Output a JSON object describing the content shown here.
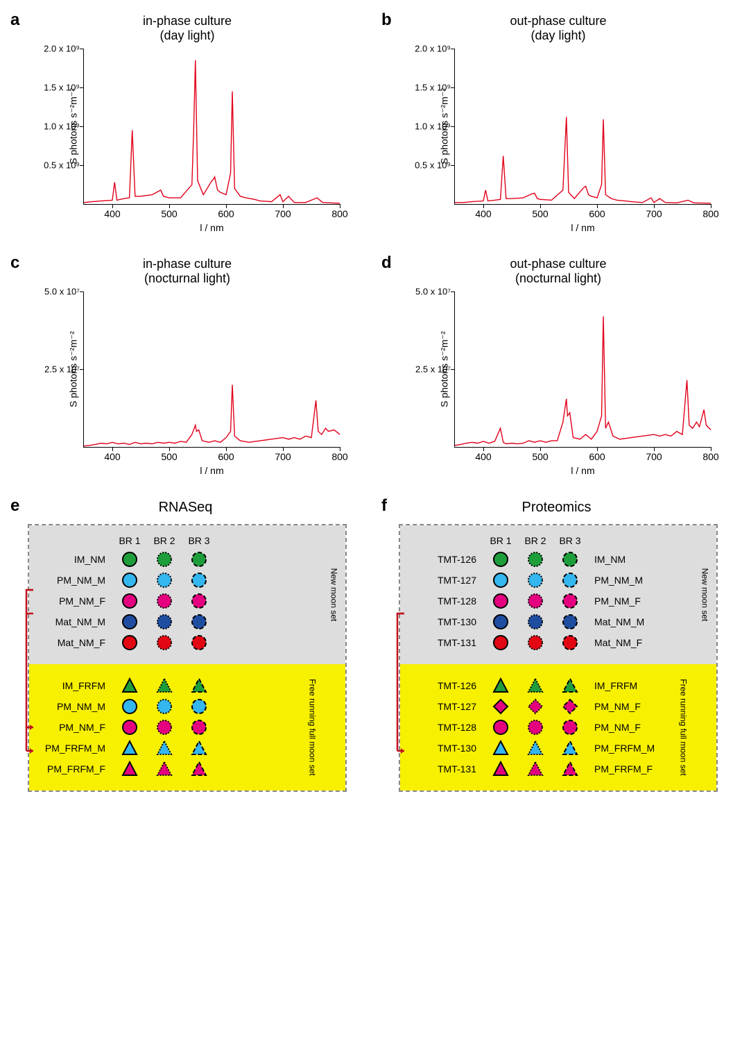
{
  "charts": {
    "a": {
      "letter": "a",
      "title": "in-phase culture\n(day light)",
      "xlabel": "l / nm",
      "ylabel": "S photons s⁻²m⁻²",
      "xlim": [
        350,
        800
      ],
      "ylim": [
        0,
        2000000000.0
      ],
      "xticks": [
        400,
        500,
        600,
        700,
        800
      ],
      "yticks": [
        {
          "v": 500000000.0,
          "label": "0.5 x 10⁹"
        },
        {
          "v": 1000000000.0,
          "label": "1.0 x 10⁹"
        },
        {
          "v": 1500000000.0,
          "label": "1.5 x 10⁹"
        },
        {
          "v": 2000000000.0,
          "label": "2.0 x 10⁹"
        }
      ],
      "line_color": "#e2001a",
      "data": [
        [
          350,
          20000000.0
        ],
        [
          365,
          30000000.0
        ],
        [
          380,
          40000000.0
        ],
        [
          400,
          50000000.0
        ],
        [
          404,
          280000000.0
        ],
        [
          408,
          50000000.0
        ],
        [
          420,
          70000000.0
        ],
        [
          430,
          80000000.0
        ],
        [
          435,
          950000000.0
        ],
        [
          440,
          100000000.0
        ],
        [
          450,
          100000000.0
        ],
        [
          470,
          120000000.0
        ],
        [
          485,
          180000000.0
        ],
        [
          490,
          100000000.0
        ],
        [
          500,
          80000000.0
        ],
        [
          520,
          80000000.0
        ],
        [
          540,
          250000000.0
        ],
        [
          543,
          950000000.0
        ],
        [
          546,
          1850000000.0
        ],
        [
          550,
          300000000.0
        ],
        [
          560,
          120000000.0
        ],
        [
          575,
          300000000.0
        ],
        [
          578,
          320000000.0
        ],
        [
          580,
          350000000.0
        ],
        [
          585,
          180000000.0
        ],
        [
          590,
          150000000.0
        ],
        [
          600,
          120000000.0
        ],
        [
          608,
          400000000.0
        ],
        [
          611,
          1450000000.0
        ],
        [
          615,
          200000000.0
        ],
        [
          625,
          100000000.0
        ],
        [
          635,
          80000000.0
        ],
        [
          650,
          60000000.0
        ],
        [
          660,
          40000000.0
        ],
        [
          680,
          30000000.0
        ],
        [
          695,
          120000000.0
        ],
        [
          700,
          30000000.0
        ],
        [
          710,
          100000000.0
        ],
        [
          720,
          20000000.0
        ],
        [
          740,
          20000000.0
        ],
        [
          760,
          80000000.0
        ],
        [
          770,
          20000000.0
        ],
        [
          800,
          10000000.0
        ]
      ]
    },
    "b": {
      "letter": "b",
      "title": "out-phase culture\n(day light)",
      "xlabel": "l / nm",
      "ylabel": "S photons s⁻²m⁻²",
      "xlim": [
        350,
        800
      ],
      "ylim": [
        0,
        2000000000.0
      ],
      "xticks": [
        400,
        500,
        600,
        700,
        800
      ],
      "yticks": [
        {
          "v": 500000000.0,
          "label": "0.5 x 10⁹"
        },
        {
          "v": 1000000000.0,
          "label": "1.0 x 10⁹"
        },
        {
          "v": 1500000000.0,
          "label": "1.5 x 10⁹"
        },
        {
          "v": 2000000000.0,
          "label": "2.0 x 10⁹"
        }
      ],
      "line_color": "#e2001a",
      "data": [
        [
          350,
          20000000.0
        ],
        [
          365,
          20000000.0
        ],
        [
          380,
          30000000.0
        ],
        [
          400,
          40000000.0
        ],
        [
          404,
          180000000.0
        ],
        [
          408,
          40000000.0
        ],
        [
          420,
          50000000.0
        ],
        [
          430,
          60000000.0
        ],
        [
          435,
          620000000.0
        ],
        [
          440,
          70000000.0
        ],
        [
          450,
          70000000.0
        ],
        [
          470,
          80000000.0
        ],
        [
          485,
          130000000.0
        ],
        [
          490,
          140000000.0
        ],
        [
          495,
          70000000.0
        ],
        [
          500,
          60000000.0
        ],
        [
          520,
          50000000.0
        ],
        [
          540,
          180000000.0
        ],
        [
          546,
          1120000000.0
        ],
        [
          550,
          150000000.0
        ],
        [
          560,
          70000000.0
        ],
        [
          575,
          200000000.0
        ],
        [
          578,
          220000000.0
        ],
        [
          580,
          230000000.0
        ],
        [
          585,
          120000000.0
        ],
        [
          590,
          100000000.0
        ],
        [
          600,
          80000000.0
        ],
        [
          608,
          250000000.0
        ],
        [
          611,
          1090000000.0
        ],
        [
          615,
          120000000.0
        ],
        [
          625,
          70000000.0
        ],
        [
          635,
          50000000.0
        ],
        [
          650,
          40000000.0
        ],
        [
          660,
          30000000.0
        ],
        [
          680,
          20000000.0
        ],
        [
          695,
          80000000.0
        ],
        [
          700,
          20000000.0
        ],
        [
          710,
          70000000.0
        ],
        [
          720,
          20000000.0
        ],
        [
          740,
          15000000.0
        ],
        [
          760,
          50000000.0
        ],
        [
          770,
          15000000.0
        ],
        [
          800,
          10000000.0
        ]
      ]
    },
    "c": {
      "letter": "c",
      "title": "in-phase culture\n(nocturnal light)",
      "xlabel": "l / nm",
      "ylabel": "S photons s⁻²m⁻²",
      "xlim": [
        350,
        800
      ],
      "ylim": [
        0,
        50000000.0
      ],
      "xticks": [
        400,
        500,
        600,
        700,
        800
      ],
      "yticks": [
        {
          "v": 25000000.0,
          "label": "2.5 x 10⁷"
        },
        {
          "v": 50000000.0,
          "label": "5.0 x 10⁷"
        }
      ],
      "line_color": "#e2001a",
      "data": [
        [
          350,
          300000.0
        ],
        [
          360,
          500000.0
        ],
        [
          370,
          800000.0
        ],
        [
          380,
          1200000.0
        ],
        [
          390,
          1000000.0
        ],
        [
          400,
          1500000.0
        ],
        [
          410,
          1000000.0
        ],
        [
          420,
          1200000.0
        ],
        [
          430,
          800000.0
        ],
        [
          440,
          1500000.0
        ],
        [
          450,
          1000000.0
        ],
        [
          460,
          1200000.0
        ],
        [
          470,
          1000000.0
        ],
        [
          480,
          1500000.0
        ],
        [
          490,
          1200000.0
        ],
        [
          500,
          1500000.0
        ],
        [
          510,
          1200000.0
        ],
        [
          520,
          1800000.0
        ],
        [
          530,
          1500000.0
        ],
        [
          540,
          4000000.0
        ],
        [
          546,
          7000000.0
        ],
        [
          548,
          5000000.0
        ],
        [
          552,
          5500000.0
        ],
        [
          558,
          2000000.0
        ],
        [
          570,
          1500000.0
        ],
        [
          580,
          2000000.0
        ],
        [
          590,
          1500000.0
        ],
        [
          600,
          3000000.0
        ],
        [
          608,
          5000000.0
        ],
        [
          611,
          20000000.0
        ],
        [
          615,
          3500000.0
        ],
        [
          625,
          2000000.0
        ],
        [
          640,
          1500000.0
        ],
        [
          660,
          2000000.0
        ],
        [
          680,
          2500000.0
        ],
        [
          700,
          3000000.0
        ],
        [
          710,
          2500000.0
        ],
        [
          720,
          3000000.0
        ],
        [
          730,
          2500000.0
        ],
        [
          740,
          3500000.0
        ],
        [
          750,
          3000000.0
        ],
        [
          758,
          15000000.0
        ],
        [
          762,
          5000000.0
        ],
        [
          768,
          4000000.0
        ],
        [
          775,
          6000000.0
        ],
        [
          780,
          5000000.0
        ],
        [
          790,
          5500000.0
        ],
        [
          800,
          4000000.0
        ]
      ]
    },
    "d": {
      "letter": "d",
      "title": "out-phase culture\n(nocturnal light)",
      "xlabel": "l / nm",
      "ylabel": "S photons s⁻²m⁻²",
      "xlim": [
        350,
        800
      ],
      "ylim": [
        0,
        50000000.0
      ],
      "xticks": [
        400,
        500,
        600,
        700,
        800
      ],
      "yticks": [
        {
          "v": 25000000.0,
          "label": "2.5 x 10⁷"
        },
        {
          "v": 50000000.0,
          "label": "5.0 x 10⁷"
        }
      ],
      "line_color": "#e2001a",
      "data": [
        [
          350,
          500000.0
        ],
        [
          360,
          800000.0
        ],
        [
          370,
          1200000.0
        ],
        [
          380,
          1500000.0
        ],
        [
          390,
          1200000.0
        ],
        [
          400,
          1800000.0
        ],
        [
          410,
          1200000.0
        ],
        [
          420,
          1800000.0
        ],
        [
          430,
          6000000.0
        ],
        [
          435,
          1500000.0
        ],
        [
          440,
          1000000.0
        ],
        [
          450,
          1200000.0
        ],
        [
          460,
          1000000.0
        ],
        [
          470,
          1200000.0
        ],
        [
          480,
          2000000.0
        ],
        [
          490,
          1500000.0
        ],
        [
          500,
          2000000.0
        ],
        [
          510,
          1500000.0
        ],
        [
          520,
          2000000.0
        ],
        [
          530,
          2000000.0
        ],
        [
          540,
          8000000.0
        ],
        [
          546,
          15500000.0
        ],
        [
          548,
          10000000.0
        ],
        [
          552,
          11000000.0
        ],
        [
          558,
          3000000.0
        ],
        [
          570,
          2500000.0
        ],
        [
          580,
          4000000.0
        ],
        [
          590,
          2500000.0
        ],
        [
          600,
          5000000.0
        ],
        [
          608,
          10000000.0
        ],
        [
          611,
          42000000.0
        ],
        [
          615,
          6000000.0
        ],
        [
          620,
          8000000.0
        ],
        [
          628,
          3500000.0
        ],
        [
          640,
          2500000.0
        ],
        [
          660,
          3000000.0
        ],
        [
          680,
          3500000.0
        ],
        [
          700,
          4000000.0
        ],
        [
          710,
          3500000.0
        ],
        [
          720,
          4000000.0
        ],
        [
          730,
          3500000.0
        ],
        [
          740,
          5000000.0
        ],
        [
          750,
          4000000.0
        ],
        [
          758,
          21500000.0
        ],
        [
          762,
          7000000.0
        ],
        [
          768,
          6000000.0
        ],
        [
          775,
          8000000.0
        ],
        [
          780,
          6500000.0
        ],
        [
          788,
          12000000.0
        ],
        [
          792,
          7000000.0
        ],
        [
          800,
          5500000.0
        ]
      ]
    }
  },
  "legends": {
    "e": {
      "letter": "e",
      "title": "RNASeq",
      "header": [
        "BR 1",
        "BR 2",
        "BR 3"
      ],
      "nm_side": "New moon set",
      "frfm_side": "Free running full moon set",
      "nm_rows": [
        {
          "left": "IM_NM",
          "shape": "circle",
          "color": "#1e9e3b"
        },
        {
          "left": "PM_NM_M",
          "shape": "circle",
          "color": "#34b6ef"
        },
        {
          "left": "PM_NM_F",
          "shape": "circle",
          "color": "#e4007e"
        },
        {
          "left": "Mat_NM_M",
          "shape": "circle",
          "color": "#1f4ea1"
        },
        {
          "left": "Mat_NM_F",
          "shape": "circle",
          "color": "#e30613"
        }
      ],
      "frfm_rows": [
        {
          "left": "IM_FRFM",
          "shape": "triangle",
          "color": "#1e9e3b"
        },
        {
          "left": "PM_NM_M",
          "shape": "circle",
          "color": "#34b6ef"
        },
        {
          "left": "PM_NM_F",
          "shape": "circle",
          "color": "#e4007e"
        },
        {
          "left": "PM_FRFM_M",
          "shape": "triangle",
          "color": "#34b6ef"
        },
        {
          "left": "PM_FRFM_F",
          "shape": "triangle",
          "color": "#e4007e"
        }
      ],
      "bracket_from": [
        1,
        2
      ],
      "bracket_to": [
        1,
        2
      ]
    },
    "f": {
      "letter": "f",
      "title": "Proteomics",
      "header": [
        "BR 1",
        "BR 2",
        "BR 3"
      ],
      "nm_side": "New moon set",
      "frfm_side": "Free running full moon set",
      "nm_rows": [
        {
          "left": "TMT-126",
          "right": "IM_NM",
          "shape": "circle",
          "color": "#1e9e3b"
        },
        {
          "left": "TMT-127",
          "right": "PM_NM_M",
          "shape": "circle",
          "color": "#34b6ef"
        },
        {
          "left": "TMT-128",
          "right": "PM_NM_F",
          "shape": "circle",
          "color": "#e4007e"
        },
        {
          "left": "TMT-130",
          "right": "Mat_NM_M",
          "shape": "circle",
          "color": "#1f4ea1"
        },
        {
          "left": "TMT-131",
          "right": "Mat_NM_F",
          "shape": "circle",
          "color": "#e30613"
        }
      ],
      "frfm_rows": [
        {
          "left": "TMT-126",
          "right": "IM_FRFM",
          "shape": "triangle",
          "color": "#1e9e3b"
        },
        {
          "left": "TMT-127",
          "right": "PM_NM_F",
          "shape": "diamond",
          "color": "#e4007e"
        },
        {
          "left": "TMT-128",
          "right": "PM_NM_F",
          "shape": "circle",
          "color": "#e4007e"
        },
        {
          "left": "TMT-130",
          "right": "PM_FRFM_M",
          "shape": "triangle",
          "color": "#34b6ef"
        },
        {
          "left": "TMT-131",
          "right": "PM_FRFM_F",
          "shape": "triangle",
          "color": "#e4007e"
        }
      ],
      "bracket_from": [
        2
      ],
      "bracket_to": [
        2
      ]
    }
  },
  "marker_styles": {
    "br1": {
      "stroke": "#000",
      "dash": "none",
      "sw": 2
    },
    "br2": {
      "stroke": "#000",
      "dash": "2,2",
      "sw": 2
    },
    "br3": {
      "stroke": "#000",
      "dash": "6,3",
      "sw": 2
    }
  },
  "bracket_color": "#c1121f"
}
